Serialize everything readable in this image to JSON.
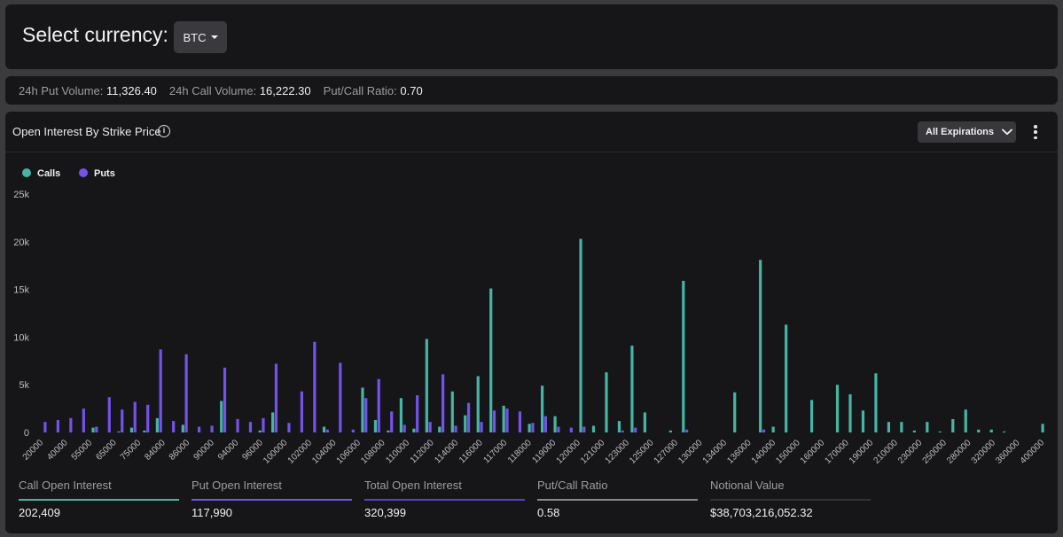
{
  "currency_selector": {
    "label": "Select currency:",
    "value": "BTC"
  },
  "stats": {
    "put_volume_label": "24h Put Volume:",
    "put_volume_value": "11,326.40",
    "call_volume_label": "24h Call Volume:",
    "call_volume_value": "16,222.30",
    "ratio_label": "Put/Call Ratio:",
    "ratio_value": "0.70"
  },
  "chart_panel": {
    "title": "Open Interest By Strike Price",
    "info_icon": "info-icon",
    "expirations_label": "All Expirations",
    "more_icon": "more-vertical-icon"
  },
  "colors": {
    "calls": "#45b5a6",
    "puts": "#7452ec",
    "total": "#5c3fd0",
    "ratio": "#8a8a8e",
    "notional": "#333336"
  },
  "chart_data": {
    "type": "bar",
    "ylim": [
      0,
      25000
    ],
    "y_ticks": [
      0,
      5000,
      10000,
      15000,
      20000,
      25000
    ],
    "y_tick_labels": [
      "0",
      "5k",
      "10k",
      "15k",
      "20k",
      "25k"
    ],
    "categories": [
      "20000",
      "30000",
      "40000",
      "50000",
      "55000",
      "60000",
      "65000",
      "70000",
      "75000",
      "80000",
      "84000",
      "85000",
      "86000",
      "88000",
      "90000",
      "92000",
      "94000",
      "95000",
      "96000",
      "98000",
      "100000",
      "101000",
      "102000",
      "103000",
      "104000",
      "105000",
      "106000",
      "107000",
      "108000",
      "109000",
      "110000",
      "111000",
      "112000",
      "113000",
      "114000",
      "115000",
      "116000",
      "116500",
      "117000",
      "118000",
      "119000",
      "119500",
      "120000",
      "122000",
      "123000",
      "124000",
      "125000",
      "126000",
      "127000",
      "128000",
      "130000",
      "132000",
      "134000",
      "135000",
      "136000",
      "138000",
      "140000",
      "145000",
      "150000",
      "155000",
      "160000",
      "165000",
      "170000",
      "180000",
      "190000",
      "200000",
      "210000",
      "220000",
      "230000",
      "240000",
      "250000",
      "260000",
      "280000",
      "300000",
      "320000",
      "340000",
      "360000",
      "380000",
      "400000"
    ],
    "x_tick_labels": [
      "20000",
      "40000",
      "55000",
      "65000",
      "75000",
      "84000",
      "86000",
      "90000",
      "94000",
      "96000",
      "100000",
      "102000",
      "104000",
      "106000",
      "108000",
      "110000",
      "112000",
      "114000",
      "116000",
      "117000",
      "118000",
      "119000",
      "120000",
      "121000",
      "123000",
      "125000",
      "127000",
      "130000",
      "134000",
      "136000",
      "140000",
      "150000",
      "160000",
      "170000",
      "190000",
      "210000",
      "230000",
      "250000",
      "280000",
      "320000",
      "360000",
      "400000"
    ],
    "series": [
      {
        "name": "Calls",
        "values": [
          0,
          0,
          0,
          0,
          500,
          0,
          100,
          500,
          200,
          1500,
          0,
          800,
          0,
          0,
          3300,
          0,
          0,
          200,
          2100,
          0,
          0,
          0,
          600,
          0,
          0,
          4700,
          1300,
          200,
          3600,
          400,
          9800,
          600,
          4300,
          1800,
          5900,
          15100,
          2800,
          0,
          900,
          4900,
          1700,
          0,
          20300,
          700,
          6300,
          1200,
          9100,
          2100,
          0,
          200,
          15900,
          0,
          0,
          0,
          4200,
          0,
          18100,
          600,
          11300,
          0,
          3400,
          0,
          5000,
          4000,
          2300,
          6200,
          1100,
          1100,
          200,
          1100,
          100,
          1400,
          2400,
          300,
          300,
          100,
          0,
          0,
          900
        ]
      },
      {
        "name": "Puts",
        "values": [
          1100,
          1300,
          1500,
          2500,
          600,
          3700,
          2400,
          3200,
          2900,
          8700,
          1200,
          8200,
          600,
          700,
          6800,
          1400,
          1100,
          1500,
          7200,
          1000,
          4300,
          9500,
          300,
          7300,
          300,
          3600,
          5600,
          2200,
          800,
          3900,
          1100,
          6100,
          700,
          3100,
          1100,
          2300,
          2500,
          2200,
          1000,
          1700,
          600,
          500,
          600,
          0,
          0,
          200,
          500,
          0,
          0,
          0,
          300,
          0,
          0,
          0,
          0,
          0,
          300,
          0,
          0,
          0,
          0,
          0,
          0,
          0,
          0,
          0,
          0,
          0,
          0,
          0,
          0,
          0,
          0,
          0,
          0,
          0,
          0,
          0,
          0
        ]
      }
    ],
    "legend": "top-left"
  },
  "summary": [
    {
      "label": "Call Open Interest",
      "value": "202,409"
    },
    {
      "label": "Put Open Interest",
      "value": "117,990"
    },
    {
      "label": "Total Open Interest",
      "value": "320,399"
    },
    {
      "label": "Put/Call Ratio",
      "value": "0.58"
    },
    {
      "label": "Notional Value",
      "value": "$38,703,216,052.32"
    }
  ]
}
